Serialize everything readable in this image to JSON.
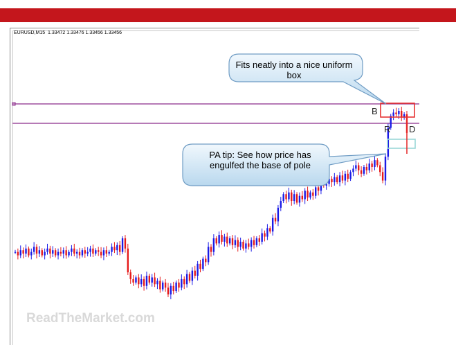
{
  "header": {
    "symbol_info": "EURUSD,M15  1.33472 1.33476 1.33456 1.33456"
  },
  "colors": {
    "banner": "#c4161c",
    "bull_candle": "#1a1ae6",
    "bear_candle": "#e61a1a",
    "level_line": "#8b2a8b",
    "box": "#e63232",
    "box_secondary": "#9ad7d7"
  },
  "annotations": {
    "callout_box": "Fits neatly into a nice uniform box",
    "callout_engulf": "PA tip: See how price has engulfed the base of pole",
    "label_b": "B",
    "label_r": "R",
    "label_d": "D"
  },
  "watermark": "ReadTheMarket.com",
  "chart_data": {
    "type": "candlestick",
    "title": "EURUSD,M15  1.33472 1.33476 1.33456 1.33456",
    "series": [
      {
        "name": "",
        "values": [
          0.52,
          0.5,
          0.53,
          0.51,
          0.54,
          0.5,
          0.52,
          0.55,
          0.51,
          0.53,
          0.5,
          0.52,
          0.54,
          0.51,
          0.53,
          0.5,
          0.52,
          0.51,
          0.53,
          0.5,
          0.52,
          0.54,
          0.51,
          0.52,
          0.5,
          0.53,
          0.51,
          0.52,
          0.54,
          0.51,
          0.53,
          0.52,
          0.5,
          0.53,
          0.51,
          0.52,
          0.55,
          0.53,
          0.56,
          0.52,
          0.6,
          0.54,
          0.4,
          0.36,
          0.34,
          0.37,
          0.33,
          0.36,
          0.32,
          0.38,
          0.34,
          0.37,
          0.33,
          0.35,
          0.3,
          0.34,
          0.31,
          0.27,
          0.32,
          0.29,
          0.34,
          0.31,
          0.36,
          0.33,
          0.39,
          0.35,
          0.41,
          0.38,
          0.45,
          0.42,
          0.48,
          0.46,
          0.55,
          0.52,
          0.6,
          0.57,
          0.62,
          0.58,
          0.61,
          0.57,
          0.6,
          0.56,
          0.59,
          0.55,
          0.58,
          0.54,
          0.57,
          0.55,
          0.59,
          0.56,
          0.6,
          0.58,
          0.63,
          0.61,
          0.66,
          0.64,
          0.72,
          0.7,
          0.78,
          0.82,
          0.86,
          0.83,
          0.87,
          0.82,
          0.86,
          0.81,
          0.85,
          0.83,
          0.88,
          0.84,
          0.87,
          0.85,
          0.9,
          0.88,
          0.93,
          0.91,
          0.92,
          0.95,
          0.93,
          0.96,
          0.93,
          0.97,
          0.94,
          0.98,
          0.95,
          0.99,
          1.01,
          1.03,
          1.0,
          0.98,
          1.02,
          1.0,
          1.04,
          1.02,
          1.06,
          1.03,
          0.99,
          0.94,
          1.08,
          1.25,
          1.32,
          1.34,
          1.33,
          1.35,
          1.31,
          1.33,
          1.22
        ]
      }
    ],
    "xlabel": "",
    "ylabel": "",
    "grid": false,
    "levels": [
      "upper-line",
      "lower-line"
    ]
  }
}
